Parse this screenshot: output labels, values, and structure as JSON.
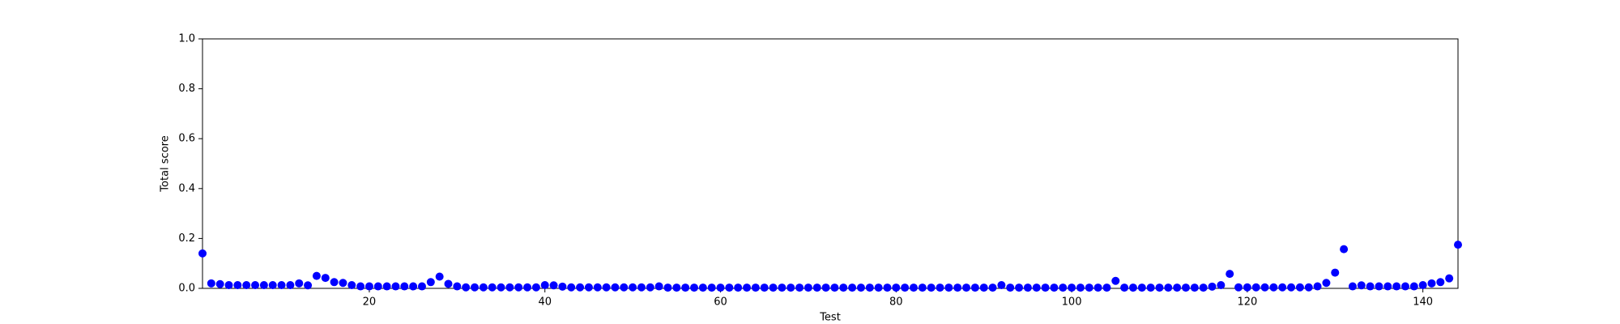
{
  "chart_data": {
    "type": "scatter",
    "xlabel": "Test",
    "ylabel": "Total score",
    "color": "#0000ff",
    "grid": false,
    "xlim": [
      1,
      144
    ],
    "ylim": [
      0,
      1
    ],
    "xticks": [
      20,
      40,
      60,
      80,
      100,
      120,
      140
    ],
    "yticks": [
      {
        "value": 0,
        "label": "0.0"
      },
      0.2,
      0.4,
      0.6,
      0.8,
      {
        "value": 1,
        "label": "1.0"
      }
    ],
    "x": [
      1,
      2,
      3,
      4,
      5,
      6,
      7,
      8,
      9,
      10,
      11,
      12,
      13,
      14,
      15,
      16,
      17,
      18,
      19,
      20,
      21,
      22,
      23,
      24,
      25,
      26,
      27,
      28,
      29,
      30,
      31,
      32,
      33,
      34,
      35,
      36,
      37,
      38,
      39,
      40,
      41,
      42,
      43,
      44,
      45,
      46,
      47,
      48,
      49,
      50,
      51,
      52,
      53,
      54,
      55,
      56,
      57,
      58,
      59,
      60,
      61,
      62,
      63,
      64,
      65,
      66,
      67,
      68,
      69,
      70,
      71,
      72,
      73,
      74,
      75,
      76,
      77,
      78,
      79,
      80,
      81,
      82,
      83,
      84,
      85,
      86,
      87,
      88,
      89,
      90,
      91,
      92,
      93,
      94,
      95,
      96,
      97,
      98,
      99,
      100,
      101,
      102,
      103,
      104,
      105,
      106,
      107,
      108,
      109,
      110,
      111,
      112,
      113,
      114,
      115,
      116,
      117,
      118,
      119,
      120,
      121,
      122,
      123,
      124,
      125,
      126,
      127,
      128,
      129,
      130,
      131,
      132,
      133,
      134,
      135,
      136,
      137,
      138,
      139,
      140,
      141,
      142,
      143,
      144
    ],
    "values": [
      0.14,
      0.02,
      0.017,
      0.013,
      0.013,
      0.013,
      0.013,
      0.013,
      0.013,
      0.013,
      0.013,
      0.02,
      0.012,
      0.05,
      0.042,
      0.025,
      0.022,
      0.013,
      0.008,
      0.008,
      0.008,
      0.008,
      0.008,
      0.008,
      0.008,
      0.008,
      0.025,
      0.047,
      0.018,
      0.008,
      0.004,
      0.004,
      0.004,
      0.004,
      0.004,
      0.004,
      0.004,
      0.004,
      0.004,
      0.013,
      0.012,
      0.007,
      0.004,
      0.004,
      0.004,
      0.004,
      0.004,
      0.004,
      0.004,
      0.004,
      0.004,
      0.004,
      0.008,
      0.003,
      0.003,
      0.003,
      0.003,
      0.003,
      0.003,
      0.003,
      0.003,
      0.003,
      0.003,
      0.003,
      0.003,
      0.003,
      0.003,
      0.003,
      0.003,
      0.003,
      0.003,
      0.003,
      0.003,
      0.003,
      0.003,
      0.003,
      0.003,
      0.003,
      0.003,
      0.003,
      0.003,
      0.003,
      0.003,
      0.003,
      0.003,
      0.003,
      0.003,
      0.003,
      0.003,
      0.003,
      0.003,
      0.013,
      0.003,
      0.003,
      0.003,
      0.003,
      0.003,
      0.003,
      0.003,
      0.003,
      0.003,
      0.003,
      0.003,
      0.003,
      0.03,
      0.003,
      0.003,
      0.003,
      0.003,
      0.003,
      0.003,
      0.003,
      0.003,
      0.003,
      0.003,
      0.007,
      0.013,
      0.058,
      0.004,
      0.004,
      0.004,
      0.004,
      0.004,
      0.004,
      0.004,
      0.004,
      0.004,
      0.008,
      0.022,
      0.063,
      0.157,
      0.008,
      0.012,
      0.008,
      0.008,
      0.008,
      0.008,
      0.008,
      0.008,
      0.013,
      0.02,
      0.025,
      0.04,
      0.175
    ]
  }
}
